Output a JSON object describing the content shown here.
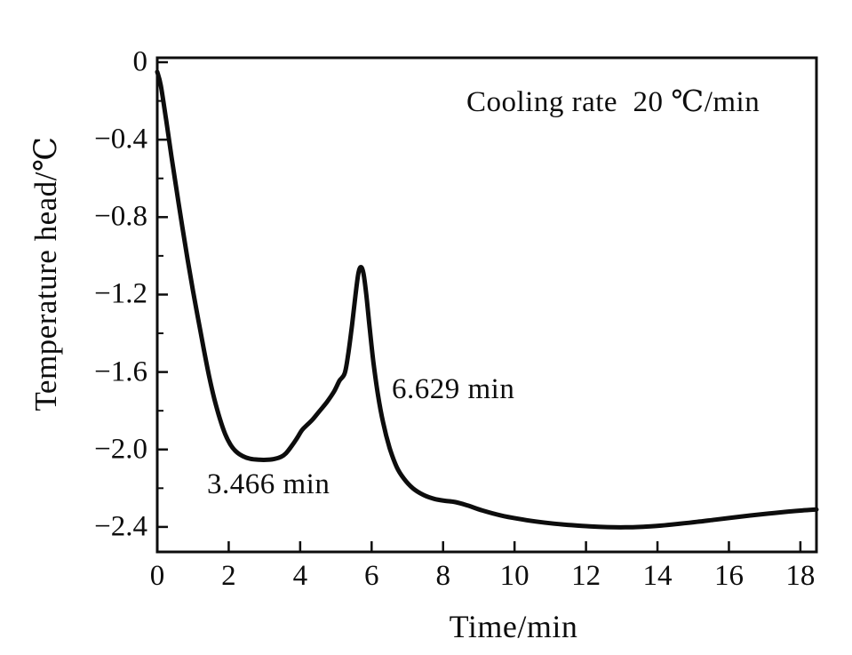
{
  "figure": {
    "background": "#ffffff",
    "ink_color": "#0d0d0d"
  },
  "chart_data": {
    "type": "line",
    "title": "",
    "xlabel": "Time/min",
    "ylabel": "Temperature head/℃",
    "xlim": [
      0,
      18.45
    ],
    "ylim": [
      -2.529,
      0.023
    ],
    "x_ticks": [
      2,
      4,
      6,
      8,
      10,
      12,
      14,
      16,
      18
    ],
    "x_tick_label_values": [
      0,
      2,
      4,
      6,
      8,
      10,
      12,
      14,
      16,
      18
    ],
    "x_tick_labels": [
      "0",
      "2",
      "4",
      "6",
      "8",
      "10",
      "12",
      "14",
      "16",
      "18"
    ],
    "y_ticks": [
      0,
      -0.4,
      -0.8,
      -1.2,
      -1.6,
      -2.0,
      -2.4
    ],
    "y_tick_labels": [
      "0",
      "−0.4",
      "−0.8",
      "−1.2",
      "−1.6",
      "−2.0",
      "−2.4"
    ],
    "y_minor_tick_step": 0.2,
    "grid": false,
    "legend": null,
    "annotations": [
      {
        "id": "cooling-rate",
        "text": "Cooling rate  20 ℃/min"
      },
      {
        "id": "valley-time",
        "text": "3.466 min"
      },
      {
        "id": "peak-time",
        "text": "6.629 min"
      }
    ],
    "series": [
      {
        "name": "cooling-curve",
        "color": "#0d0d0d",
        "points": [
          [
            0.0,
            -0.05
          ],
          [
            0.1,
            -0.12
          ],
          [
            0.25,
            -0.3
          ],
          [
            0.4,
            -0.49
          ],
          [
            0.55,
            -0.67
          ],
          [
            0.7,
            -0.85
          ],
          [
            0.85,
            -1.02
          ],
          [
            1.0,
            -1.18
          ],
          [
            1.15,
            -1.33
          ],
          [
            1.3,
            -1.48
          ],
          [
            1.45,
            -1.62
          ],
          [
            1.6,
            -1.74
          ],
          [
            1.75,
            -1.84
          ],
          [
            1.9,
            -1.92
          ],
          [
            2.05,
            -1.975
          ],
          [
            2.2,
            -2.01
          ],
          [
            2.4,
            -2.035
          ],
          [
            2.6,
            -2.048
          ],
          [
            2.85,
            -2.053
          ],
          [
            3.1,
            -2.053
          ],
          [
            3.3,
            -2.048
          ],
          [
            3.466,
            -2.038
          ],
          [
            3.6,
            -2.02
          ],
          [
            3.75,
            -1.985
          ],
          [
            3.9,
            -1.945
          ],
          [
            4.05,
            -1.9
          ],
          [
            4.2,
            -1.872
          ],
          [
            4.35,
            -1.845
          ],
          [
            4.55,
            -1.8
          ],
          [
            4.75,
            -1.755
          ],
          [
            4.95,
            -1.7
          ],
          [
            5.1,
            -1.645
          ],
          [
            5.25,
            -1.605
          ],
          [
            5.35,
            -1.5
          ],
          [
            5.45,
            -1.36
          ],
          [
            5.55,
            -1.2
          ],
          [
            5.63,
            -1.09
          ],
          [
            5.7,
            -1.058
          ],
          [
            5.77,
            -1.09
          ],
          [
            5.85,
            -1.2
          ],
          [
            5.95,
            -1.38
          ],
          [
            6.05,
            -1.55
          ],
          [
            6.18,
            -1.72
          ],
          [
            6.32,
            -1.86
          ],
          [
            6.5,
            -1.99
          ],
          [
            6.7,
            -2.09
          ],
          [
            6.9,
            -2.15
          ],
          [
            7.15,
            -2.2
          ],
          [
            7.45,
            -2.235
          ],
          [
            7.75,
            -2.255
          ],
          [
            8.05,
            -2.265
          ],
          [
            8.35,
            -2.272
          ],
          [
            8.7,
            -2.29
          ],
          [
            9.1,
            -2.315
          ],
          [
            9.6,
            -2.34
          ],
          [
            10.1,
            -2.358
          ],
          [
            10.6,
            -2.372
          ],
          [
            11.1,
            -2.383
          ],
          [
            11.6,
            -2.391
          ],
          [
            12.1,
            -2.397
          ],
          [
            12.6,
            -2.401
          ],
          [
            13.1,
            -2.402
          ],
          [
            13.6,
            -2.399
          ],
          [
            14.1,
            -2.393
          ],
          [
            14.6,
            -2.384
          ],
          [
            15.1,
            -2.374
          ],
          [
            15.6,
            -2.363
          ],
          [
            16.1,
            -2.352
          ],
          [
            16.6,
            -2.341
          ],
          [
            17.1,
            -2.331
          ],
          [
            17.6,
            -2.322
          ],
          [
            18.05,
            -2.315
          ],
          [
            18.45,
            -2.31
          ]
        ]
      }
    ]
  }
}
